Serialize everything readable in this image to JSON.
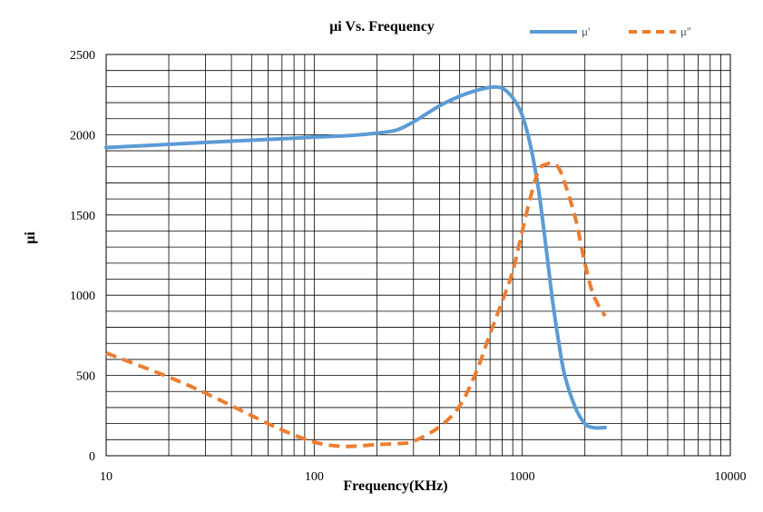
{
  "chart_data": {
    "type": "line",
    "title": "μi Vs. Frequency",
    "xlabel": "Frequency(KHz)",
    "ylabel": "μi",
    "x_scale": "log",
    "xlim": [
      10,
      10000
    ],
    "ylim": [
      0,
      2500
    ],
    "x_ticks": [
      10,
      100,
      1000,
      10000
    ],
    "x_tick_labels": [
      "10",
      "100",
      "1000",
      "10000"
    ],
    "y_ticks": [
      0,
      500,
      1000,
      1500,
      2000,
      2500
    ],
    "y_tick_labels": [
      "0",
      "500",
      "1000",
      "1500",
      "2000",
      "2500"
    ],
    "grid": true,
    "legend_position": "top-right",
    "series": [
      {
        "name": "μ'",
        "color": "#5b9bd5",
        "style": "solid",
        "x": [
          10,
          20,
          40,
          70,
          100,
          150,
          200,
          250,
          300,
          400,
          500,
          600,
          700,
          800,
          900,
          1000,
          1100,
          1200,
          1300,
          1400,
          1500,
          1600,
          1800,
          2000,
          2200,
          2500
        ],
        "y": [
          1920,
          1940,
          1960,
          1975,
          1985,
          1995,
          2010,
          2030,
          2080,
          2180,
          2240,
          2275,
          2295,
          2290,
          2230,
          2120,
          1920,
          1650,
          1300,
          960,
          700,
          500,
          300,
          200,
          175,
          175
        ]
      },
      {
        "name": "μ''",
        "color": "#ed7d31",
        "style": "dashed",
        "x": [
          10,
          20,
          30,
          50,
          70,
          100,
          130,
          160,
          200,
          250,
          300,
          400,
          500,
          600,
          700,
          800,
          900,
          1000,
          1100,
          1200,
          1300,
          1400,
          1500,
          1600,
          1800,
          2000,
          2200,
          2500
        ],
        "y": [
          640,
          490,
          390,
          250,
          160,
          85,
          60,
          60,
          70,
          75,
          90,
          180,
          310,
          520,
          760,
          960,
          1150,
          1400,
          1620,
          1780,
          1815,
          1820,
          1790,
          1700,
          1480,
          1200,
          1000,
          870
        ]
      }
    ]
  }
}
